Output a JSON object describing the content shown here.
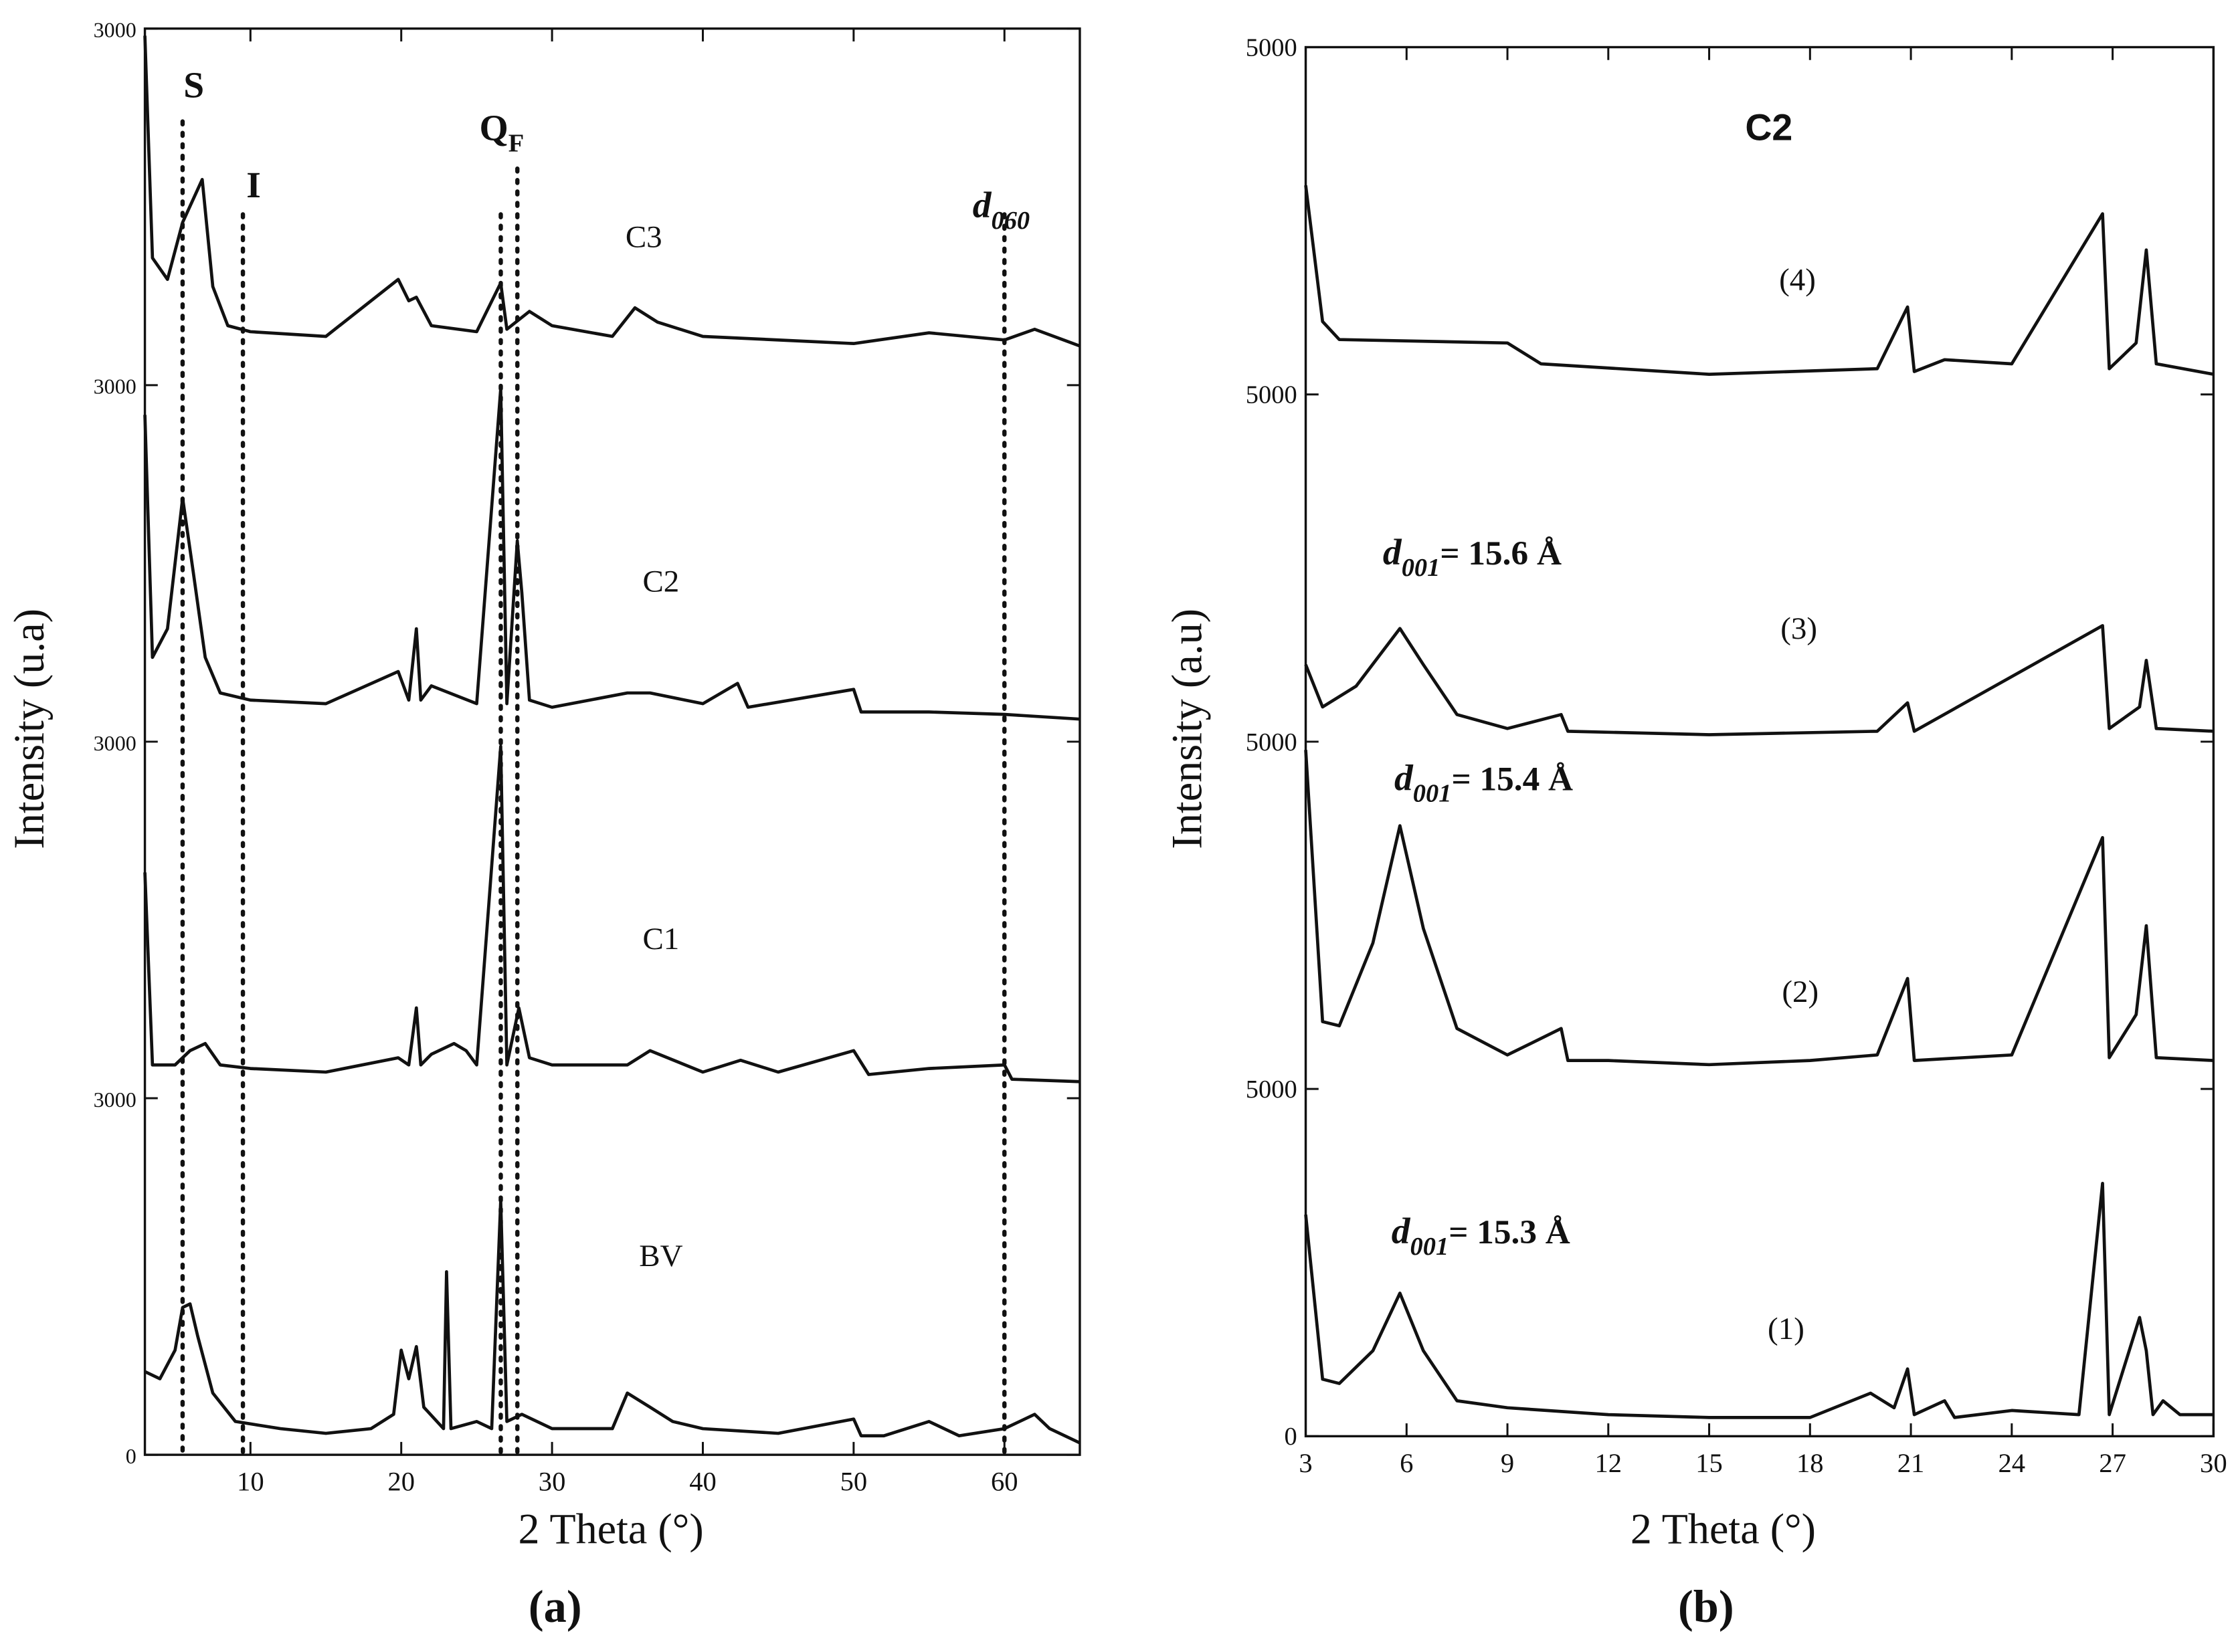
{
  "chart_data": [
    {
      "type": "line",
      "panel_label": "(a)",
      "xlabel": "2 Theta (°)",
      "ylabel": "Intensity (u.a)",
      "xlim": [
        3,
        65
      ],
      "ylim": [
        0,
        12000
      ],
      "xticks": [
        10,
        20,
        30,
        40,
        50,
        60
      ],
      "yticks": [
        0,
        {
          "value": 3000,
          "label": "3000"
        },
        {
          "value": 6000,
          "label": "3000"
        },
        {
          "value": 9000,
          "label": "3000"
        },
        {
          "value": 12000,
          "label": "3000"
        }
      ],
      "reference_lines": [
        5.5,
        9.5,
        26.6,
        27.7,
        60
      ],
      "annotations": [
        {
          "text": "S"
        },
        {
          "text": "I"
        },
        {
          "text": "Q",
          "sub": "F"
        },
        {
          "text": "d",
          "sub": "060"
        }
      ],
      "series": [
        {
          "name": "C3",
          "color": "#111111",
          "x": [
            3,
            3.5,
            4.5,
            5.5,
            6.8,
            7.5,
            8.5,
            10,
            15,
            19.8,
            20.5,
            21,
            22,
            25,
            26.6,
            27,
            28.5,
            30,
            34,
            35.5,
            37,
            40,
            50,
            55,
            60,
            62,
            65
          ],
          "values": [
            11940,
            10070,
            9890,
            10370,
            10730,
            9830,
            9500,
            9450,
            9410,
            9890,
            9710,
            9740,
            9500,
            9450,
            9860,
            9470,
            9620,
            9500,
            9410,
            9650,
            9530,
            9410,
            9350,
            9440,
            9380,
            9470,
            9330
          ]
        },
        {
          "name": "C2",
          "color": "#111111",
          "x": [
            3,
            3.5,
            4.5,
            5.5,
            6.2,
            7,
            8,
            10,
            15,
            19.8,
            20.5,
            21,
            21.3,
            22,
            25,
            26.6,
            27,
            27.7,
            28,
            28.5,
            30,
            35,
            36.5,
            40,
            42.3,
            43,
            50,
            50.5,
            55,
            60,
            65
          ],
          "values": [
            8750,
            6710,
            6950,
            8050,
            7430,
            6710,
            6410,
            6350,
            6320,
            6590,
            6350,
            6950,
            6350,
            6470,
            6320,
            8970,
            6320,
            7690,
            7250,
            6350,
            6290,
            6410,
            6410,
            6320,
            6490,
            6290,
            6440,
            6250,
            6250,
            6230,
            6190
          ]
        },
        {
          "name": "C1",
          "color": "#111111",
          "x": [
            3,
            3.5,
            5,
            6,
            7,
            8,
            10,
            15,
            19.8,
            20.5,
            21,
            21.3,
            22,
            23.5,
            24.3,
            25,
            26.6,
            27,
            27.8,
            28.5,
            30,
            35,
            36.5,
            40,
            42.5,
            45,
            50,
            51,
            55,
            60,
            60.5,
            65
          ],
          "values": [
            4900,
            3280,
            3280,
            3400,
            3460,
            3280,
            3250,
            3220,
            3340,
            3280,
            3760,
            3280,
            3370,
            3460,
            3400,
            3280,
            5960,
            3280,
            3760,
            3340,
            3280,
            3280,
            3400,
            3220,
            3320,
            3220,
            3400,
            3200,
            3250,
            3280,
            3160,
            3140
          ]
        },
        {
          "name": "BV",
          "color": "#111111",
          "x": [
            3,
            4,
            5,
            5.5,
            6,
            6.5,
            7.5,
            9,
            12,
            15,
            18,
            19.5,
            20,
            20.5,
            21,
            21.5,
            22.8,
            23,
            23.3,
            25,
            26,
            26.6,
            27,
            28,
            30,
            34,
            35,
            36.5,
            38,
            40,
            45,
            50,
            50.5,
            52,
            55,
            57,
            60,
            62,
            63,
            65
          ],
          "values": [
            700,
            640,
            880,
            1240,
            1270,
            1000,
            520,
            280,
            220,
            180,
            220,
            340,
            880,
            640,
            910,
            400,
            220,
            1540,
            220,
            280,
            220,
            2140,
            280,
            340,
            220,
            220,
            520,
            400,
            280,
            220,
            180,
            300,
            160,
            160,
            280,
            160,
            220,
            340,
            220,
            100
          ]
        }
      ]
    },
    {
      "type": "line",
      "panel_label": "(b)",
      "title": "C2",
      "xlabel": "2 Theta (°)",
      "ylabel": "Intensity (a.u)",
      "xlim": [
        3,
        30
      ],
      "ylim": [
        0,
        20000
      ],
      "xticks": [
        3,
        6,
        9,
        12,
        15,
        18,
        21,
        24,
        27,
        30
      ],
      "yticks": [
        0,
        5000,
        {
          "value": 10000,
          "label": "5000"
        },
        {
          "value": 15000,
          "label": "5000"
        },
        {
          "value": 20000,
          "label": "5000"
        }
      ],
      "annotations": [
        {
          "text": "d",
          "sub": "001",
          "rest": "= 15.6 Å"
        },
        {
          "text": "d",
          "sub": "001",
          "rest": "= 15.4 Å"
        },
        {
          "text": "d",
          "sub": "001",
          "rest": "= 15.3 Å"
        }
      ],
      "series": [
        {
          "name": "(4)",
          "color": "#111111",
          "x": [
            3,
            3.5,
            4,
            9,
            10,
            15,
            20,
            20.9,
            21.1,
            22,
            24,
            26.7,
            26.9,
            27.7,
            28,
            28.3,
            30
          ],
          "values": [
            18010,
            16050,
            15790,
            15740,
            15440,
            15290,
            15370,
            16260,
            15330,
            15500,
            15440,
            17600,
            15370,
            15740,
            17080,
            15440,
            15290
          ]
        },
        {
          "name": "(3)",
          "color": "#111111",
          "x": [
            3,
            3.5,
            4.5,
            5.8,
            6.5,
            7.5,
            9,
            10.6,
            10.8,
            15,
            20,
            20.9,
            21.1,
            26.7,
            26.9,
            27.8,
            28,
            28.3,
            30
          ],
          "values": [
            11110,
            10500,
            10800,
            11630,
            11110,
            10390,
            10190,
            10390,
            10150,
            10100,
            10150,
            10560,
            10150,
            11670,
            10190,
            10500,
            11170,
            10190,
            10150
          ]
        },
        {
          "name": "(2)",
          "color": "#111111",
          "x": [
            3,
            3.5,
            4,
            5,
            5.8,
            6.5,
            7.5,
            9,
            10.6,
            10.8,
            12,
            15,
            18,
            20,
            20.9,
            21.1,
            24,
            26.7,
            26.9,
            27.7,
            28,
            28.3,
            30
          ],
          "values": [
            9880,
            5970,
            5910,
            7100,
            8790,
            7310,
            5870,
            5490,
            5870,
            5410,
            5410,
            5350,
            5410,
            5490,
            6590,
            5410,
            5490,
            8620,
            5450,
            6070,
            7350,
            5450,
            5410
          ]
        },
        {
          "name": "(1)",
          "color": "#111111",
          "x": [
            3,
            3.5,
            4,
            5,
            5.8,
            6.5,
            7.5,
            9,
            12,
            15,
            18,
            19.8,
            20.5,
            20.9,
            21.1,
            22,
            22.3,
            24,
            26,
            26.7,
            26.9,
            27.8,
            28,
            28.2,
            28.5,
            29,
            30
          ],
          "values": [
            3190,
            820,
            760,
            1230,
            2060,
            1230,
            510,
            410,
            310,
            270,
            270,
            620,
            410,
            970,
            310,
            510,
            270,
            370,
            310,
            3640,
            310,
            1710,
            1230,
            310,
            510,
            310,
            310
          ]
        }
      ]
    }
  ]
}
